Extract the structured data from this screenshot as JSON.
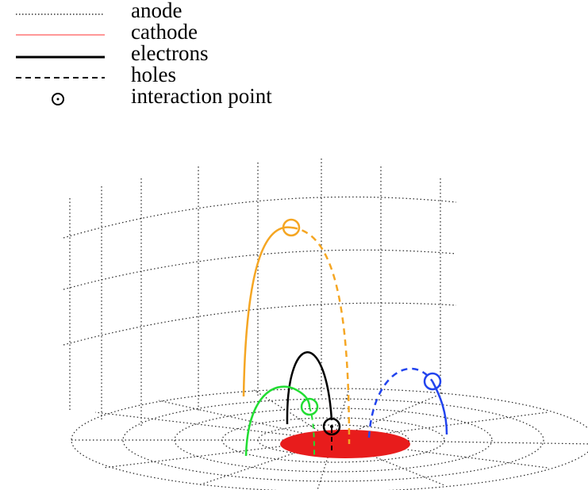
{
  "legend": [
    "anode",
    "cathode",
    "electrons",
    "holes",
    "interaction point"
  ]
}
